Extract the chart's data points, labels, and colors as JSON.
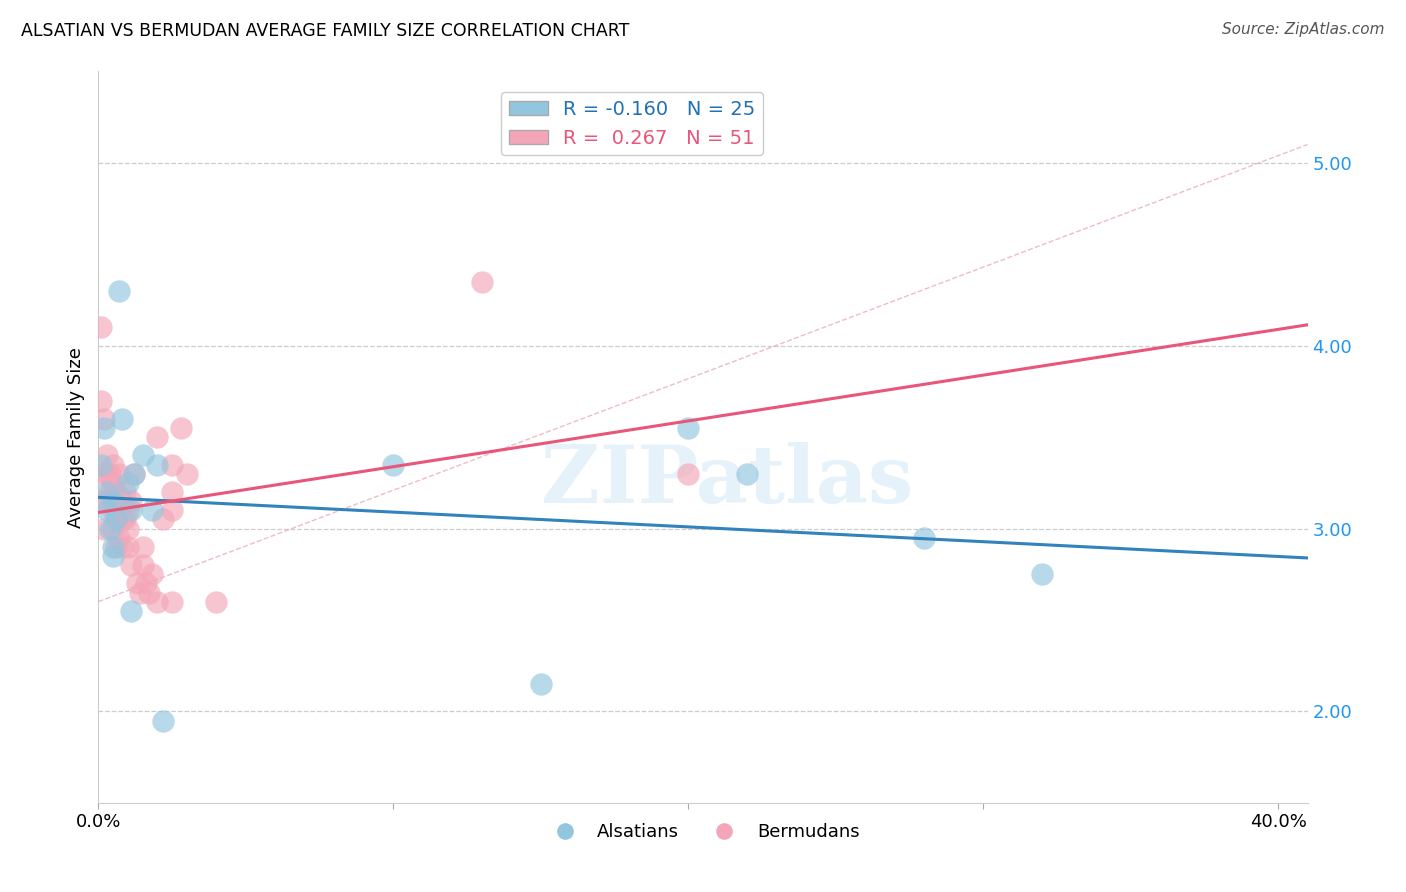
{
  "title": "ALSATIAN VS BERMUDAN AVERAGE FAMILY SIZE CORRELATION CHART",
  "source": "Source: ZipAtlas.com",
  "ylabel": "Average Family Size",
  "right_yticks": [
    2.0,
    3.0,
    4.0,
    5.0
  ],
  "legend_blue_r": "-0.160",
  "legend_blue_n": "25",
  "legend_pink_r": "0.267",
  "legend_pink_n": "51",
  "watermark": "ZIPatlas",
  "alsatian_x": [
    0.001,
    0.002,
    0.003,
    0.003,
    0.004,
    0.005,
    0.005,
    0.005,
    0.006,
    0.007,
    0.008,
    0.01,
    0.011,
    0.011,
    0.012,
    0.015,
    0.018,
    0.02,
    0.022,
    0.1,
    0.15,
    0.2,
    0.22,
    0.28,
    0.32
  ],
  "alsatian_y": [
    3.35,
    3.55,
    3.1,
    3.2,
    3.0,
    3.15,
    2.85,
    2.9,
    3.05,
    4.3,
    3.6,
    3.25,
    3.1,
    2.55,
    3.3,
    3.4,
    3.1,
    3.35,
    1.95,
    3.35,
    2.15,
    3.55,
    3.3,
    2.95,
    2.75
  ],
  "bermudan_x": [
    0.001,
    0.001,
    0.001,
    0.001,
    0.002,
    0.002,
    0.003,
    0.003,
    0.003,
    0.004,
    0.004,
    0.005,
    0.005,
    0.005,
    0.005,
    0.006,
    0.006,
    0.006,
    0.007,
    0.007,
    0.007,
    0.008,
    0.008,
    0.008,
    0.009,
    0.009,
    0.01,
    0.01,
    0.01,
    0.011,
    0.011,
    0.012,
    0.013,
    0.014,
    0.015,
    0.015,
    0.016,
    0.017,
    0.018,
    0.02,
    0.02,
    0.022,
    0.025,
    0.025,
    0.025,
    0.025,
    0.028,
    0.03,
    0.04,
    0.13,
    0.2
  ],
  "bermudan_y": [
    4.1,
    3.7,
    3.3,
    3.15,
    3.6,
    3.0,
    3.4,
    3.3,
    3.15,
    3.3,
    3.2,
    3.35,
    3.25,
    3.1,
    3.0,
    3.2,
    3.1,
    2.9,
    3.3,
    3.1,
    2.95,
    3.15,
    3.05,
    2.9,
    3.2,
    3.05,
    3.1,
    3.0,
    2.9,
    3.15,
    2.8,
    3.3,
    2.7,
    2.65,
    2.9,
    2.8,
    2.7,
    2.65,
    2.75,
    3.5,
    2.6,
    3.05,
    3.35,
    3.2,
    3.1,
    2.6,
    3.55,
    3.3,
    2.6,
    4.35,
    3.3
  ],
  "blue_color": "#92c5de",
  "pink_color": "#f4a6b8",
  "blue_line_color": "#3182bd",
  "pink_line_color": "#e8567a",
  "dashed_line_color": "#d4a0b0",
  "xlim": [
    0.0,
    0.41
  ],
  "ylim": [
    1.5,
    5.5
  ],
  "figsize": [
    14.06,
    8.92
  ],
  "dpi": 100
}
